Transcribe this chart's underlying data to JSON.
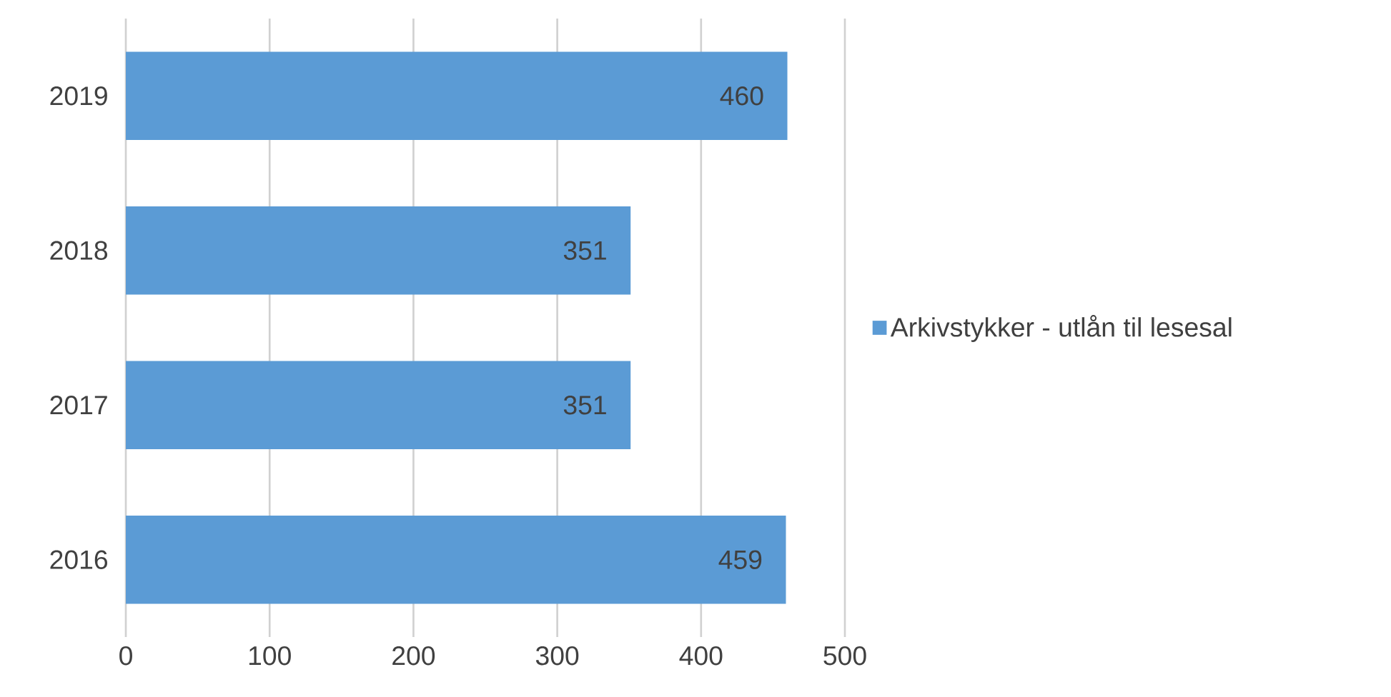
{
  "chart_data": {
    "type": "bar",
    "orientation": "horizontal",
    "categories": [
      "2019",
      "2018",
      "2017",
      "2016"
    ],
    "series": [
      {
        "name": "Arkivstykker - utlån til lesesal",
        "color": "#5b9bd5",
        "values": [
          460,
          351,
          351,
          459
        ]
      }
    ],
    "xlim": [
      0,
      500
    ],
    "xticks": [
      0,
      100,
      200,
      300,
      400,
      500
    ],
    "grid": "x",
    "legend": "right",
    "data_labels": true
  }
}
